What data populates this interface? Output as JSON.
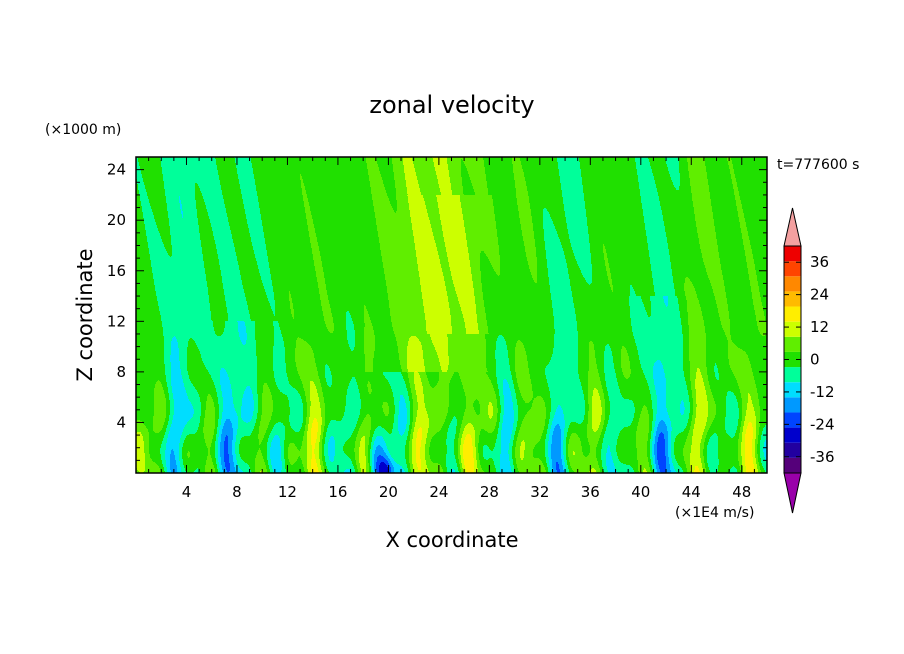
{
  "chart_data": {
    "type": "heatmap",
    "title": "zonal velocity",
    "xlabel": "X coordinate",
    "ylabel": "Z coordinate",
    "x_units": "(×1E4 m/s)",
    "y_units": "(×1000 m)",
    "time_label": "t=777600 s",
    "xlim": [
      0,
      50
    ],
    "ylim": [
      0,
      25
    ],
    "x_ticks": [
      "4",
      "8",
      "12",
      "16",
      "20",
      "24",
      "28",
      "32",
      "36",
      "40",
      "44",
      "48"
    ],
    "y_ticks": [
      "4",
      "8",
      "12",
      "16",
      "20",
      "24"
    ],
    "x_tick_values": [
      4,
      8,
      12,
      16,
      20,
      24,
      28,
      32,
      36,
      40,
      44,
      48
    ],
    "y_tick_values": [
      4,
      8,
      12,
      16,
      20,
      24
    ],
    "colorbar": {
      "levels": [
        -42,
        -36,
        -30,
        -24,
        -18,
        -12,
        -6,
        0,
        6,
        12,
        18,
        24,
        30,
        36,
        42
      ],
      "tick_labels": [
        "-36",
        "-24",
        "-12",
        "0",
        "12",
        "24",
        "36"
      ],
      "tick_values": [
        -36,
        -24,
        -12,
        0,
        12,
        24,
        36
      ],
      "colors": [
        "#55007a",
        "#2200a0",
        "#0000cc",
        "#0044ff",
        "#0099ff",
        "#00ddff",
        "#00ff9a",
        "#20e000",
        "#60ee00",
        "#ccff00",
        "#ffee00",
        "#ffbb00",
        "#ff8800",
        "#ff4400",
        "#ee0000"
      ],
      "under_color": "#9900aa",
      "over_color": "#f4a0a0"
    },
    "field_description": "Velocity mostly between -12 and +12; band of 6-18 near x=19-27 above z=10; alternating positive/negative plumes below z=10; strongest negative (~-30) near x=20, z=0-1."
  }
}
